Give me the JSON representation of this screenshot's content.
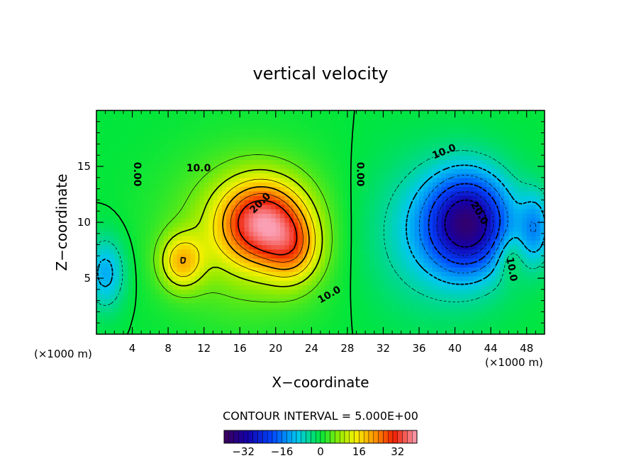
{
  "chart_data": {
    "type": "heatmap",
    "subtype": "filled-contour",
    "title": "vertical velocity",
    "xlabel": "X−coordinate",
    "ylabel": "Z−coordinate",
    "x_unit_left": "(×1000 m)",
    "x_unit_right": "(×1000 m)",
    "xlim": [
      0,
      50
    ],
    "ylim": [
      0,
      20
    ],
    "x_ticks": [
      4,
      8,
      12,
      16,
      20,
      24,
      28,
      32,
      36,
      40,
      44,
      48
    ],
    "x_tick_labels": [
      "4",
      "8",
      "12",
      "16",
      "20",
      "24",
      "28",
      "32",
      "36",
      "40",
      "44",
      "48"
    ],
    "y_ticks": [
      5,
      10,
      15
    ],
    "y_tick_labels": [
      "5",
      "10",
      "15"
    ],
    "contour_interval_text": "CONTOUR INTERVAL = 5.000E+00",
    "contour_interval": 5,
    "colorbar": {
      "range": [
        -40,
        40
      ],
      "ticks": [
        -32,
        -16,
        0,
        16,
        32
      ],
      "tick_labels": [
        "−32",
        "−16",
        "0",
        "16",
        "32"
      ]
    },
    "features": [
      {
        "type": "updraft",
        "x": 18.5,
        "z": 10,
        "peak": 30
      },
      {
        "type": "updraft",
        "x": 9.5,
        "z": 6.5,
        "peak": 20
      },
      {
        "type": "downdraft",
        "x": 41.5,
        "z": 10,
        "peak": -30
      },
      {
        "type": "downdraft",
        "x": 1.0,
        "z": 5.5,
        "peak": -12
      },
      {
        "type": "downdraft",
        "x": 49.0,
        "z": 9.5,
        "peak": -12
      }
    ],
    "contour_labels": [
      {
        "text": "0.00",
        "x": 4.5,
        "z": 14.3,
        "rotate": 90
      },
      {
        "text": "10.0",
        "x": 11.4,
        "z": 14.8,
        "rotate": 0
      },
      {
        "text": "20.0",
        "x": 18.3,
        "z": 11.7,
        "rotate": -45
      },
      {
        "text": "10.0",
        "x": 26.0,
        "z": 3.5,
        "rotate": -30
      },
      {
        "text": "0.00",
        "x": 29.4,
        "z": 14.3,
        "rotate": 90
      },
      {
        "text": "10.0",
        "x": 38.8,
        "z": 16.3,
        "rotate": -22
      },
      {
        "text": "20.0",
        "x": 42.7,
        "z": 10.8,
        "rotate": 60
      },
      {
        "text": "10.0",
        "x": 46.3,
        "z": 5.8,
        "rotate": 80
      }
    ]
  }
}
